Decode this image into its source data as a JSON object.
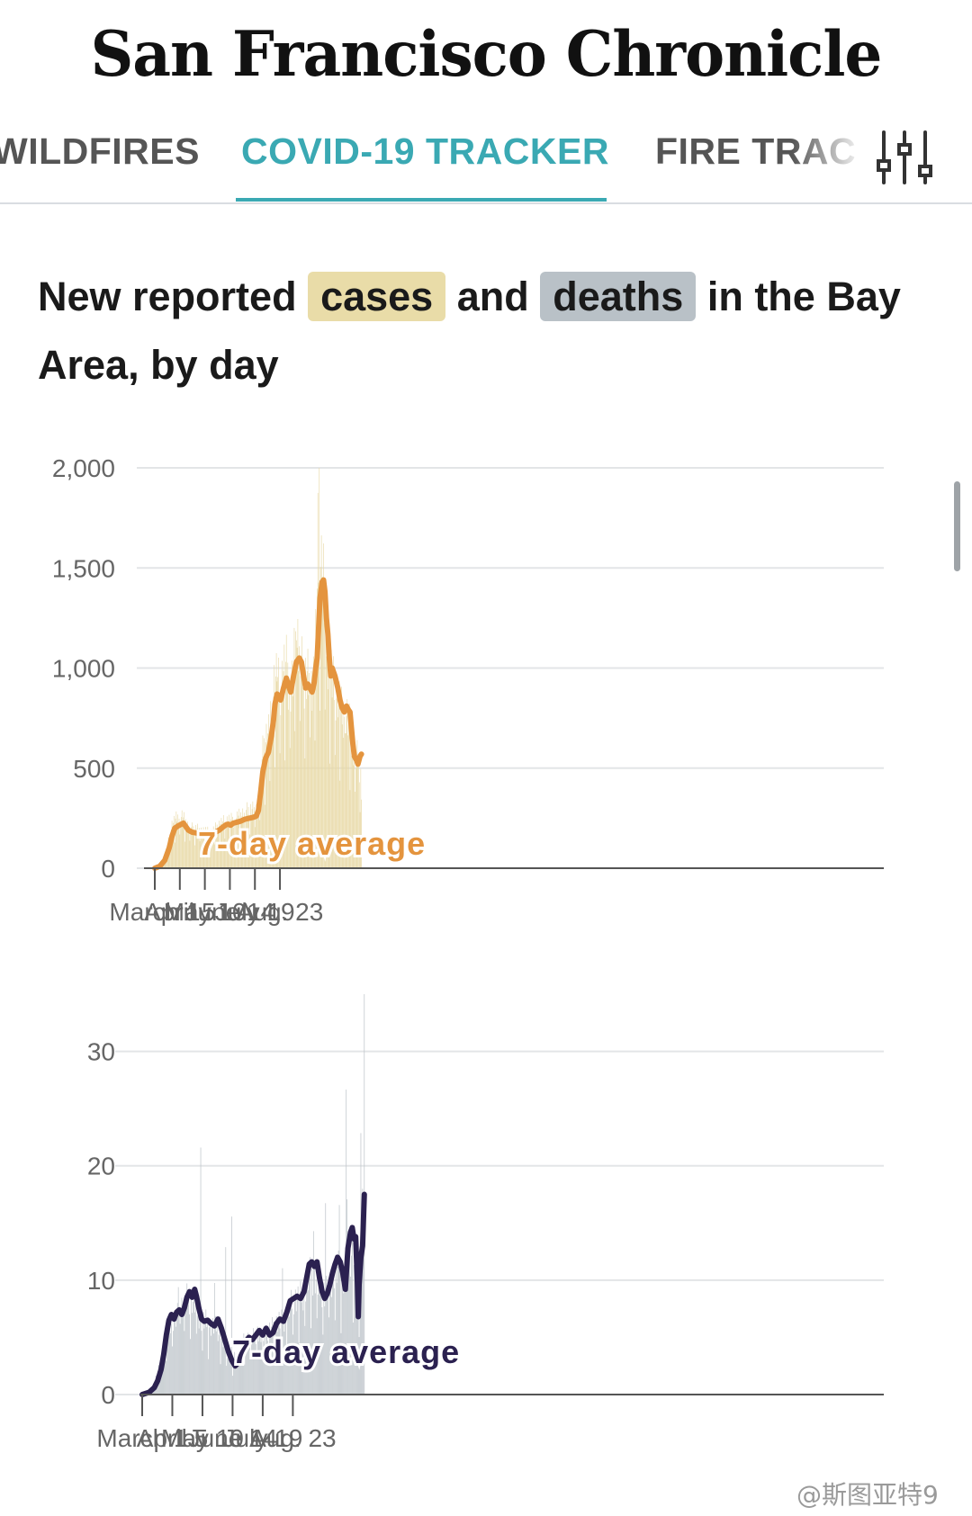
{
  "masthead": {
    "title": "San Francisco Chronicle"
  },
  "nav": {
    "tabs": [
      {
        "label": "WILDFIRES",
        "active": false
      },
      {
        "label": "COVID-19 TRACKER",
        "active": true
      },
      {
        "label": "FIRE TRAC",
        "active": false
      }
    ],
    "filter_icon": "sliders-icon",
    "accent_color": "#3aa9b3"
  },
  "headline": {
    "part1": "New reported",
    "cases": "cases",
    "part2": "and",
    "deaths": "deaths",
    "part3": "in the Bay Area, by day"
  },
  "watermark": "@斯图亚特9",
  "chart_data": [
    {
      "type": "bar",
      "name": "cases",
      "bar_color": "#e8d9a6",
      "line_color": "#e4943e",
      "xlabel": "",
      "ylabel": "",
      "ylim": [
        0,
        2000
      ],
      "yticks": [
        0,
        500,
        1000,
        1500,
        2000
      ],
      "ytick_labels": [
        "0",
        "500",
        "1,000",
        "1,500",
        "2,000"
      ],
      "xticks": [
        "March 1",
        "April 5",
        "May 10",
        "June 14",
        "July 19",
        "Aug. 23"
      ],
      "annotation": "7-day average",
      "daily_start": "March 1",
      "avg_knots": [
        [
          0,
          0
        ],
        [
          7,
          10
        ],
        [
          14,
          40
        ],
        [
          20,
          100
        ],
        [
          24,
          160
        ],
        [
          28,
          200
        ],
        [
          32,
          210
        ],
        [
          37,
          220
        ],
        [
          40,
          225
        ],
        [
          43,
          210
        ],
        [
          47,
          190
        ],
        [
          52,
          180
        ],
        [
          60,
          175
        ],
        [
          67,
          172
        ],
        [
          72,
          168
        ],
        [
          76,
          165
        ],
        [
          80,
          170
        ],
        [
          85,
          180
        ],
        [
          90,
          190
        ],
        [
          95,
          205
        ],
        [
          100,
          218
        ],
        [
          103,
          220
        ],
        [
          106,
          215
        ],
        [
          110,
          225
        ],
        [
          115,
          230
        ],
        [
          120,
          235
        ],
        [
          126,
          245
        ],
        [
          132,
          250
        ],
        [
          138,
          255
        ],
        [
          142,
          260
        ],
        [
          145,
          290
        ],
        [
          148,
          380
        ],
        [
          151,
          480
        ],
        [
          155,
          550
        ],
        [
          159,
          580
        ],
        [
          163,
          660
        ],
        [
          166,
          740
        ],
        [
          168,
          820
        ],
        [
          171,
          870
        ],
        [
          174,
          860
        ],
        [
          176,
          840
        ],
        [
          180,
          900
        ],
        [
          184,
          950
        ],
        [
          187,
          910
        ],
        [
          190,
          880
        ],
        [
          194,
          960
        ],
        [
          198,
          1030
        ],
        [
          202,
          1050
        ],
        [
          205,
          1030
        ],
        [
          208,
          960
        ],
        [
          211,
          900
        ],
        [
          214,
          920
        ],
        [
          217,
          900
        ],
        [
          220,
          880
        ],
        [
          223,
          930
        ],
        [
          225,
          1000
        ],
        [
          227,
          1050
        ],
        [
          229,
          1200
        ],
        [
          231,
          1350
        ],
        [
          234,
          1430
        ],
        [
          236,
          1440
        ],
        [
          238,
          1380
        ],
        [
          240,
          1250
        ],
        [
          242,
          1170
        ],
        [
          244,
          1050
        ],
        [
          246,
          960
        ],
        [
          248,
          1000
        ],
        [
          252,
          960
        ],
        [
          256,
          900
        ],
        [
          259,
          840
        ],
        [
          262,
          800
        ],
        [
          265,
          780
        ],
        [
          268,
          810
        ],
        [
          271,
          790
        ],
        [
          273,
          780
        ],
        [
          275,
          700
        ],
        [
          277,
          620
        ],
        [
          279,
          560
        ],
        [
          282,
          540
        ],
        [
          284,
          520
        ],
        [
          287,
          560
        ],
        [
          289,
          570
        ]
      ],
      "daily_knots": [
        [
          0,
          0
        ],
        [
          8,
          15
        ],
        [
          14,
          60
        ],
        [
          20,
          150
        ],
        [
          24,
          220
        ],
        [
          28,
          240
        ],
        [
          33,
          260
        ],
        [
          38,
          260
        ],
        [
          42,
          240
        ],
        [
          47,
          210
        ],
        [
          52,
          200
        ],
        [
          60,
          200
        ],
        [
          68,
          190
        ],
        [
          75,
          180
        ],
        [
          80,
          180
        ],
        [
          85,
          200
        ],
        [
          90,
          220
        ],
        [
          95,
          230
        ],
        [
          100,
          240
        ],
        [
          106,
          240
        ],
        [
          112,
          250
        ],
        [
          118,
          260
        ],
        [
          124,
          280
        ],
        [
          130,
          290
        ],
        [
          136,
          300
        ],
        [
          141,
          300
        ],
        [
          145,
          320
        ],
        [
          148,
          450
        ],
        [
          151,
          580
        ],
        [
          155,
          660
        ],
        [
          160,
          700
        ],
        [
          164,
          760
        ],
        [
          166,
          900
        ],
        [
          168,
          980
        ],
        [
          171,
          960
        ],
        [
          174,
          900
        ],
        [
          177,
          940
        ],
        [
          180,
          1000
        ],
        [
          184,
          1020
        ],
        [
          188,
          940
        ],
        [
          191,
          900
        ],
        [
          194,
          1000
        ],
        [
          196,
          1100
        ],
        [
          198,
          1160
        ],
        [
          201,
          1150
        ],
        [
          204,
          1080
        ],
        [
          207,
          980
        ],
        [
          210,
          960
        ],
        [
          213,
          1000
        ],
        [
          216,
          960
        ],
        [
          219,
          940
        ],
        [
          222,
          980
        ],
        [
          224,
          1080
        ],
        [
          226,
          1250
        ],
        [
          228,
          1500
        ],
        [
          230,
          1600
        ],
        [
          232,
          1580
        ],
        [
          234,
          1500
        ],
        [
          236,
          1460
        ],
        [
          238,
          1300
        ],
        [
          240,
          1150
        ],
        [
          243,
          1050
        ],
        [
          246,
          1000
        ],
        [
          249,
          940
        ],
        [
          252,
          900
        ],
        [
          256,
          880
        ],
        [
          259,
          820
        ],
        [
          262,
          780
        ],
        [
          266,
          800
        ],
        [
          269,
          760
        ],
        [
          272,
          720
        ],
        [
          275,
          680
        ],
        [
          278,
          600
        ],
        [
          281,
          560
        ],
        [
          284,
          560
        ],
        [
          286,
          520
        ],
        [
          288,
          460
        ],
        [
          289,
          400
        ]
      ],
      "spikes": [
        [
          230,
          1930
        ],
        [
          228,
          1640
        ],
        [
          234,
          1620
        ],
        [
          196,
          1240
        ],
        [
          198,
          1380
        ],
        [
          171,
          1050
        ],
        [
          226,
          1150
        ],
        [
          266,
          1040
        ]
      ]
    },
    {
      "type": "bar",
      "name": "deaths",
      "bar_color": "#c1c7cc",
      "line_color": "#2b2150",
      "xlabel": "",
      "ylabel": "",
      "ylim": [
        0,
        35
      ],
      "yticks": [
        0,
        10,
        20,
        30
      ],
      "ytick_labels": [
        "0",
        "10",
        "20",
        "30"
      ],
      "xticks": [
        "March 1",
        "April 5",
        "May 10",
        "June 14",
        "July 19",
        "Aug. 23"
      ],
      "annotation": "7-day average",
      "daily_start": "March 1",
      "avg_knots": [
        [
          0,
          0
        ],
        [
          8,
          0.2
        ],
        [
          14,
          0.6
        ],
        [
          18,
          1.2
        ],
        [
          22,
          2.2
        ],
        [
          25,
          3.5
        ],
        [
          28,
          5.2
        ],
        [
          31,
          6.5
        ],
        [
          34,
          7.0
        ],
        [
          37,
          6.6
        ],
        [
          40,
          7.2
        ],
        [
          43,
          7.4
        ],
        [
          46,
          7.0
        ],
        [
          49,
          7.6
        ],
        [
          52,
          8.5
        ],
        [
          55,
          9.0
        ],
        [
          58,
          8.5
        ],
        [
          61,
          9.2
        ],
        [
          63,
          8.6
        ],
        [
          66,
          7.5
        ],
        [
          69,
          6.6
        ],
        [
          72,
          6.4
        ],
        [
          76,
          6.5
        ],
        [
          80,
          6.2
        ],
        [
          84,
          6.0
        ],
        [
          88,
          6.6
        ],
        [
          92,
          5.8
        ],
        [
          96,
          4.8
        ],
        [
          100,
          3.8
        ],
        [
          104,
          3.0
        ],
        [
          108,
          2.5
        ],
        [
          112,
          2.8
        ],
        [
          116,
          3.6
        ],
        [
          120,
          4.6
        ],
        [
          124,
          5.0
        ],
        [
          128,
          4.8
        ],
        [
          132,
          5.2
        ],
        [
          136,
          5.6
        ],
        [
          140,
          5.2
        ],
        [
          144,
          5.8
        ],
        [
          148,
          5.2
        ],
        [
          152,
          5.4
        ],
        [
          156,
          6.2
        ],
        [
          160,
          6.6
        ],
        [
          164,
          6.4
        ],
        [
          168,
          7.2
        ],
        [
          172,
          8.2
        ],
        [
          176,
          8.4
        ],
        [
          180,
          8.6
        ],
        [
          184,
          8.4
        ],
        [
          188,
          9.0
        ],
        [
          191,
          10.2
        ],
        [
          194,
          11.4
        ],
        [
          197,
          11.6
        ],
        [
          200,
          11.2
        ],
        [
          203,
          11.6
        ],
        [
          206,
          10.2
        ],
        [
          209,
          9.0
        ],
        [
          212,
          8.4
        ],
        [
          215,
          8.8
        ],
        [
          218,
          9.6
        ],
        [
          221,
          10.6
        ],
        [
          224,
          11.4
        ],
        [
          227,
          12.0
        ],
        [
          230,
          11.6
        ],
        [
          233,
          10.6
        ],
        [
          236,
          9.2
        ],
        [
          239,
          12.8
        ],
        [
          242,
          14.2
        ],
        [
          244,
          14.6
        ],
        [
          246,
          13.6
        ],
        [
          248,
          13.8
        ],
        [
          250,
          9.8
        ],
        [
          251,
          6.8
        ],
        [
          252,
          9.6
        ],
        [
          254,
          12.0
        ],
        [
          256,
          13.0
        ],
        [
          258,
          17.5
        ]
      ],
      "daily_knots": [
        [
          0,
          0
        ],
        [
          8,
          0.3
        ],
        [
          14,
          1
        ],
        [
          20,
          2.5
        ],
        [
          26,
          5
        ],
        [
          32,
          6.5
        ],
        [
          38,
          6.5
        ],
        [
          44,
          7.5
        ],
        [
          50,
          8.5
        ],
        [
          56,
          8.5
        ],
        [
          62,
          8
        ],
        [
          68,
          6.5
        ],
        [
          74,
          6.5
        ],
        [
          80,
          6
        ],
        [
          86,
          6
        ],
        [
          92,
          5
        ],
        [
          98,
          4
        ],
        [
          104,
          3
        ],
        [
          110,
          3.5
        ],
        [
          116,
          4.5
        ],
        [
          122,
          5
        ],
        [
          128,
          5
        ],
        [
          134,
          5.5
        ],
        [
          140,
          5
        ],
        [
          146,
          5.5
        ],
        [
          152,
          6
        ],
        [
          158,
          6.5
        ],
        [
          164,
          6.5
        ],
        [
          170,
          7.5
        ],
        [
          176,
          8.5
        ],
        [
          182,
          8.5
        ],
        [
          188,
          9
        ],
        [
          194,
          10.5
        ],
        [
          200,
          10.5
        ],
        [
          206,
          9.5
        ],
        [
          212,
          9
        ],
        [
          218,
          10
        ],
        [
          224,
          11
        ],
        [
          230,
          11
        ],
        [
          236,
          10
        ],
        [
          240,
          12
        ],
        [
          244,
          13
        ],
        [
          248,
          10
        ],
        [
          252,
          8
        ],
        [
          256,
          12
        ],
        [
          258,
          16
        ]
      ],
      "spikes": [
        [
          42,
          17
        ],
        [
          68,
          20
        ],
        [
          84,
          16
        ],
        [
          97,
          14
        ],
        [
          104,
          14
        ],
        [
          163,
          12
        ],
        [
          199,
          15
        ],
        [
          213,
          17
        ],
        [
          229,
          18
        ],
        [
          237,
          30
        ],
        [
          238,
          28
        ],
        [
          254,
          24
        ],
        [
          256,
          21
        ],
        [
          258,
          35
        ]
      ]
    }
  ]
}
